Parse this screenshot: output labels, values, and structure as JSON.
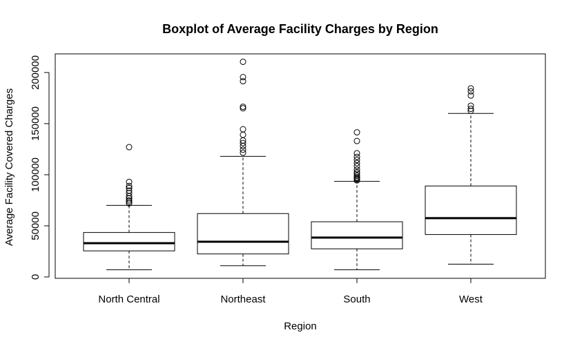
{
  "chart_data": {
    "type": "boxplot",
    "title": "Boxplot of Average Facility Charges by Region",
    "xlabel": "Region",
    "ylabel": "Average Facility Covered Charges",
    "ylim": [
      0,
      220000
    ],
    "yticks": [
      0,
      50000,
      100000,
      150000,
      200000
    ],
    "ytick_labels": [
      "0",
      "50000",
      "100000",
      "150000",
      "200000"
    ],
    "grid": false,
    "categories": [
      "North Central",
      "Northeast",
      "South",
      "West"
    ],
    "boxes": [
      {
        "category": "North Central",
        "whisker_low": 7000,
        "q1": 25500,
        "median": 33000,
        "q3": 43500,
        "whisker_high": 70000,
        "outliers": [
          72000,
          73500,
          75000,
          77000,
          79000,
          82000,
          84500,
          87000,
          89000,
          93000,
          127000
        ]
      },
      {
        "category": "Northeast",
        "whisker_low": 11000,
        "q1": 22500,
        "median": 34500,
        "q3": 62000,
        "whisker_high": 118000,
        "outliers": [
          121500,
          124500,
          128000,
          131000,
          133500,
          139000,
          144500,
          165000,
          166500,
          191500,
          195500,
          210500
        ]
      },
      {
        "category": "South",
        "whisker_low": 7000,
        "q1": 27500,
        "median": 38500,
        "q3": 54000,
        "whisker_high": 93500,
        "outliers": [
          94500,
          95500,
          96500,
          97500,
          99000,
          101000,
          102500,
          105000,
          108500,
          111500,
          114500,
          117500,
          121000,
          133000,
          141500
        ]
      },
      {
        "category": "West",
        "whisker_low": 12500,
        "q1": 41500,
        "median": 57500,
        "q3": 89000,
        "whisker_high": 160000,
        "outliers": [
          162500,
          164500,
          167500,
          177500,
          181500,
          184500
        ]
      }
    ]
  }
}
